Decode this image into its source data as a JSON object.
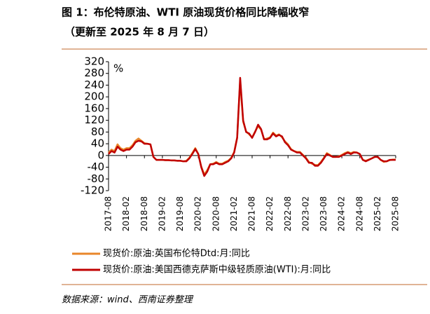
{
  "chart_data": {
    "type": "line",
    "title": "图 1：布伦特原油、WTI 原油现货价格同比降幅收窄",
    "subtitle": "（更新至 2025 年 8 月 7 日）",
    "y_unit": "%",
    "source": "数据来源：wind、西南证券整理",
    "x": [
      "2017-08",
      null,
      null,
      null,
      null,
      null,
      "2018-02",
      null,
      null,
      null,
      null,
      null,
      "2018-08",
      null,
      null,
      null,
      null,
      null,
      "2019-02",
      null,
      null,
      null,
      null,
      null,
      "2019-08",
      null,
      null,
      null,
      null,
      null,
      "2020-02",
      null,
      null,
      null,
      null,
      null,
      "2020-08",
      null,
      null,
      null,
      null,
      null,
      "2021-02",
      null,
      null,
      null,
      null,
      null,
      "2021-08",
      null,
      null,
      null,
      null,
      null,
      "2022-02",
      null,
      null,
      null,
      null,
      null,
      "2022-08",
      null,
      null,
      null,
      null,
      null,
      "2023-02",
      null,
      null,
      null,
      null,
      null,
      "2023-08",
      null,
      null,
      null,
      null,
      null,
      "2024-02",
      null,
      null,
      null,
      null,
      null,
      "2024-08",
      null,
      null,
      null,
      null,
      null,
      "2025-02",
      null,
      null,
      null,
      null,
      null,
      "2025-08"
    ],
    "ylim": [
      -120,
      320
    ],
    "yticks": [
      320,
      280,
      240,
      200,
      160,
      120,
      80,
      40,
      0,
      -40,
      -80,
      -120
    ],
    "series": [
      {
        "name": "现货价:原油:英国布伦特Dtd:月:同比",
        "color": "#e8862a",
        "values": [
          10,
          20,
          15,
          38,
          25,
          20,
          25,
          25,
          35,
          50,
          58,
          50,
          42,
          40,
          38,
          -5,
          -15,
          -15,
          -15,
          -16,
          -16,
          -17,
          -17,
          -18,
          -18,
          -20,
          -18,
          -8,
          8,
          25,
          5,
          -38,
          -65,
          -50,
          -30,
          -28,
          -22,
          -28,
          -28,
          -22,
          -18,
          -8,
          12,
          62,
          255,
          115,
          82,
          72,
          62,
          82,
          100,
          88,
          55,
          58,
          62,
          78,
          68,
          72,
          62,
          48,
          38,
          22,
          15,
          12,
          12,
          2,
          -8,
          -22,
          -28,
          -32,
          -33,
          -22,
          -8,
          8,
          2,
          -5,
          -5,
          -3,
          2,
          8,
          12,
          8,
          12,
          10,
          5,
          -15,
          -18,
          -14,
          -10,
          -5,
          -5,
          -15,
          -22,
          -20,
          -16,
          -14,
          -14
        ]
      },
      {
        "name": "现货价:原油:美国西德克萨斯中级轻质原油(WTI):月:同比",
        "color": "#c00000",
        "values": [
          5,
          15,
          10,
          30,
          20,
          15,
          20,
          20,
          30,
          45,
          50,
          48,
          40,
          40,
          38,
          -5,
          -15,
          -15,
          -15,
          -16,
          -16,
          -17,
          -17,
          -18,
          -18,
          -20,
          -20,
          -10,
          5,
          22,
          5,
          -40,
          -70,
          -55,
          -30,
          -30,
          -25,
          -30,
          -30,
          -25,
          -20,
          -10,
          10,
          60,
          265,
          120,
          80,
          75,
          60,
          80,
          105,
          90,
          55,
          55,
          60,
          75,
          65,
          70,
          65,
          45,
          35,
          20,
          15,
          10,
          10,
          0,
          -10,
          -25,
          -25,
          -35,
          -35,
          -25,
          -10,
          5,
          0,
          -5,
          -5,
          -5,
          0,
          5,
          10,
          5,
          10,
          10,
          5,
          -15,
          -20,
          -15,
          -10,
          -5,
          -5,
          -15,
          -20,
          -20,
          -15,
          -15,
          -15
        ]
      }
    ]
  }
}
